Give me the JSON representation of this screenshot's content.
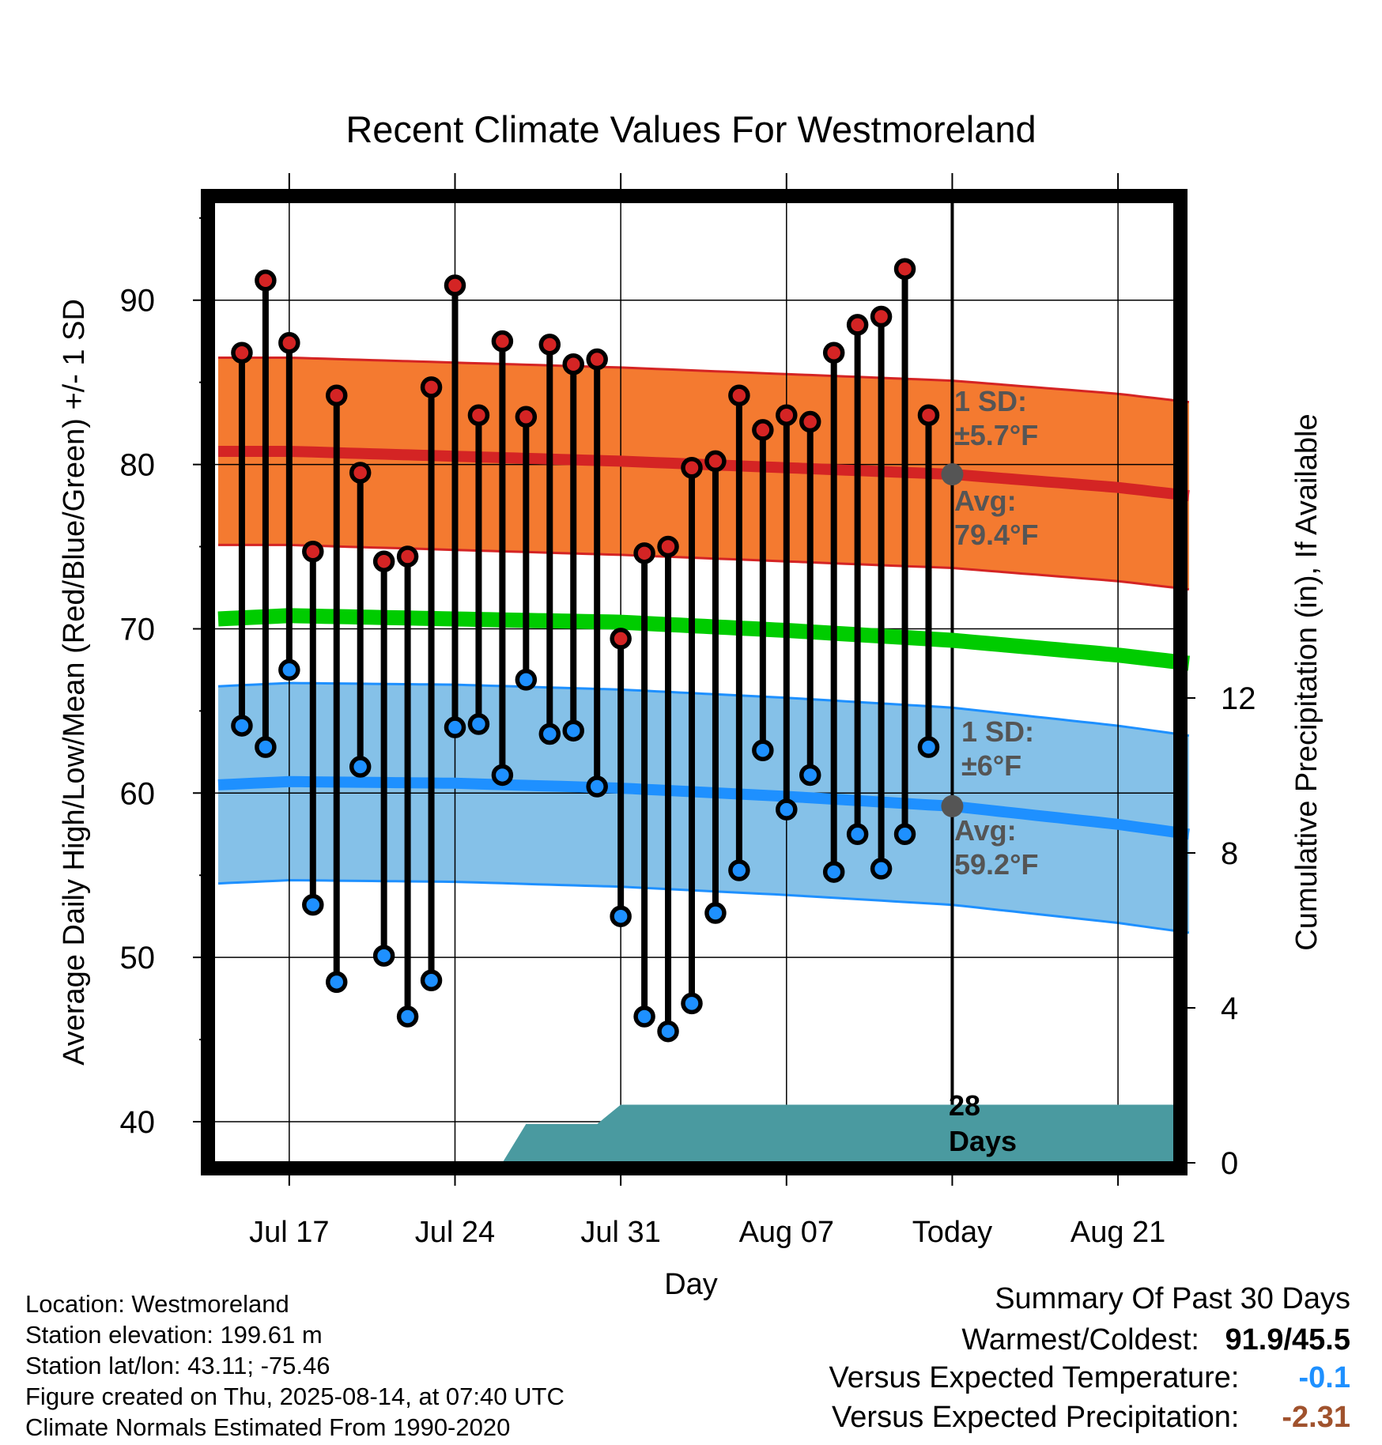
{
  "chart_data": {
    "type": "line",
    "title": "Recent Climate Values For Westmoreland",
    "xlabel": "Day",
    "ylabel": "Average Daily High/Low/Mean (Red/Blue/Green) +/- 1 SD",
    "y2label": "Cumulative Precipitation (in), If Available",
    "ylim": [
      37.5,
      96
    ],
    "y2lim": [
      0,
      20
    ],
    "x_ticks": [
      "Jul 17",
      "Jul 24",
      "Jul 31",
      "Aug 07",
      "Today",
      "Aug 21"
    ],
    "y_ticks": [
      40,
      50,
      60,
      70,
      80,
      90
    ],
    "y2_ticks": [
      0,
      4,
      8,
      12
    ],
    "grid": true,
    "dates": [
      "Jul 15",
      "Jul 16",
      "Jul 17",
      "Jul 18",
      "Jul 19",
      "Jul 20",
      "Jul 21",
      "Jul 22",
      "Jul 23",
      "Jul 24",
      "Jul 25",
      "Jul 26",
      "Jul 27",
      "Jul 28",
      "Jul 29",
      "Jul 30",
      "Jul 31",
      "Aug 01",
      "Aug 02",
      "Aug 03",
      "Aug 04",
      "Aug 05",
      "Aug 06",
      "Aug 07",
      "Aug 08",
      "Aug 09",
      "Aug 10",
      "Aug 11",
      "Aug 12",
      "Aug 13"
    ],
    "highs": [
      86.8,
      91.2,
      87.4,
      74.7,
      84.2,
      79.5,
      74.1,
      74.4,
      84.7,
      90.9,
      83.0,
      87.5,
      82.9,
      87.3,
      86.1,
      86.4,
      69.4,
      74.6,
      75.0,
      79.8,
      80.2,
      84.2,
      82.1,
      83.0,
      82.6,
      86.8,
      88.5,
      89.0,
      91.9,
      83.0
    ],
    "lows": [
      64.1,
      62.8,
      67.5,
      53.2,
      48.5,
      61.6,
      50.1,
      46.4,
      48.6,
      64.0,
      64.2,
      61.1,
      66.9,
      63.6,
      63.8,
      60.4,
      52.5,
      46.4,
      45.5,
      47.2,
      52.7,
      55.3,
      62.6,
      59.0,
      61.1,
      55.2,
      57.5,
      55.4,
      57.5,
      62.8
    ]
  },
  "normals": {
    "dates": [
      "Jul 14",
      "Jul 17",
      "Jul 24",
      "Jul 31",
      "Aug 07",
      "Aug 14",
      "Aug 21",
      "Aug 24"
    ],
    "high_avg": [
      80.8,
      80.8,
      80.5,
      80.2,
      79.8,
      79.4,
      78.6,
      78.1
    ],
    "mean": [
      70.6,
      70.8,
      70.6,
      70.4,
      69.9,
      69.3,
      68.4,
      67.9
    ],
    "low_avg": [
      60.5,
      60.7,
      60.6,
      60.3,
      59.8,
      59.2,
      58.1,
      57.5
    ],
    "high_sd": 5.7,
    "low_sd": 6.0,
    "precip_dates": [
      "Jul 26",
      "Jul 27",
      "Jul 30",
      "Jul 31",
      "Aug 24"
    ],
    "precip": [
      0,
      1.0,
      1.0,
      1.5,
      1.5
    ]
  },
  "annotations": {
    "high_sd_line1": "1 SD:",
    "high_sd_line2": "±5.7°F",
    "high_avg_line1": "Avg:",
    "high_avg_line2": "79.4°F",
    "low_sd_line1": "1 SD:",
    "low_sd_line2": "±6°F",
    "low_avg_line1": "Avg:",
    "low_avg_line2": "59.2°F",
    "days_line1": "28",
    "days_line2": "Days"
  },
  "info": {
    "location": "Location: Westmoreland",
    "elevation": "Station elevation: 199.61 m",
    "latlon": "Station lat/lon: 43.11; -75.46",
    "created": "Figure created on Thu, 2025-08-14, at 07:40 UTC",
    "normals": "Climate Normals Estimated From 1990-2020"
  },
  "summary": {
    "heading": "Summary Of Past 30 Days",
    "warm_cold_label": "Warmest/Coldest:",
    "warm_cold_value": "91.9/45.5",
    "temp_label": "Versus Expected Temperature:",
    "temp_value": "-0.1",
    "temp_color": "#1e90ff",
    "precip_label": "Versus Expected Precipitation:",
    "precip_value": "-2.31",
    "precip_color": "#a0522d"
  },
  "colors": {
    "high_band": "#f47a30",
    "high_line": "#d42424",
    "mean_line": "#00cc00",
    "low_band": "#85c1e8",
    "low_line": "#1e90ff",
    "precip_fill": "#4a9aa0",
    "high_marker": "#d42424",
    "low_marker": "#1e90ff",
    "annotation": "#555555"
  }
}
